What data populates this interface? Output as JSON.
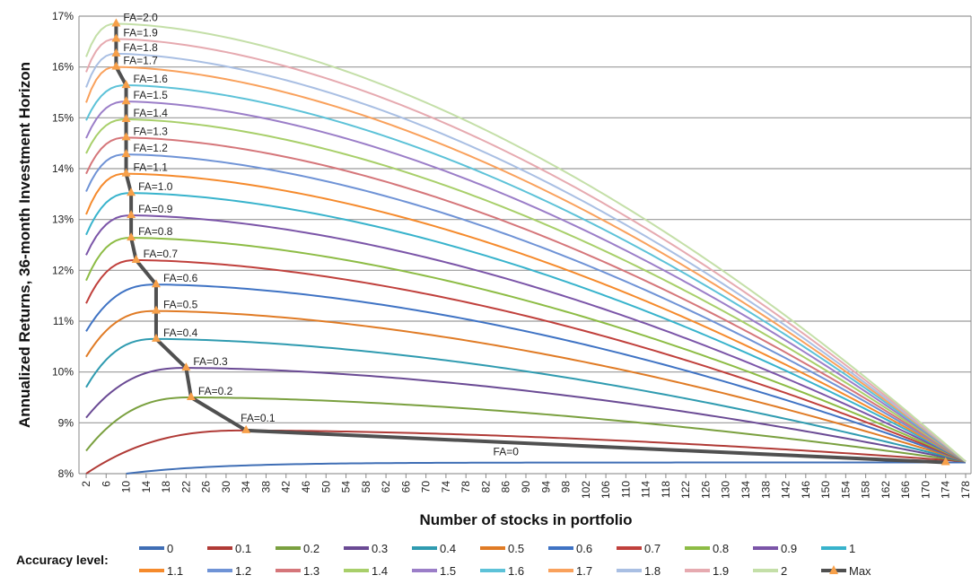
{
  "chart_data": {
    "type": "line",
    "title": "",
    "xlabel": "Number of stocks in portfolio",
    "ylabel": "Annualized Returns, 36-month Investment Horizon",
    "xlim": [
      2,
      178
    ],
    "ylim": [
      8,
      17
    ],
    "x_ticks": [
      2,
      6,
      10,
      14,
      18,
      22,
      26,
      30,
      34,
      38,
      42,
      46,
      50,
      54,
      58,
      62,
      66,
      70,
      74,
      78,
      82,
      86,
      90,
      94,
      98,
      102,
      106,
      110,
      114,
      118,
      122,
      126,
      130,
      134,
      138,
      142,
      146,
      150,
      154,
      158,
      162,
      166,
      170,
      174,
      178
    ],
    "y_ticks": [
      "8%",
      "9%",
      "10%",
      "11%",
      "12%",
      "13%",
      "14%",
      "15%",
      "16%",
      "17%"
    ],
    "grid": "horizontal",
    "legend_title": "Accuracy level:",
    "legend_position": "bottom",
    "series": [
      {
        "name": "0",
        "color": "#3f6eb5",
        "start_n": 10,
        "start": 8.0,
        "peak_n": 174,
        "peak": 8.22,
        "end": 8.22,
        "label": "FA=0"
      },
      {
        "name": "0.1",
        "color": "#b03a36",
        "start_n": 2,
        "start": 8.0,
        "peak_n": 34,
        "peak": 8.85,
        "end": 8.24,
        "label": "FA=0.1"
      },
      {
        "name": "0.2",
        "color": "#7aa03f",
        "start_n": 2,
        "start": 8.45,
        "peak_n": 23,
        "peak": 9.5,
        "end": 8.24,
        "label": "FA=0.2"
      },
      {
        "name": "0.3",
        "color": "#6a4a94",
        "start_n": 2,
        "start": 9.1,
        "peak_n": 22,
        "peak": 10.08,
        "end": 8.24,
        "label": "FA=0.3"
      },
      {
        "name": "0.4",
        "color": "#2f9bb0",
        "start_n": 2,
        "start": 9.7,
        "peak_n": 16,
        "peak": 10.65,
        "end": 8.24,
        "label": "FA=0.4"
      },
      {
        "name": "0.5",
        "color": "#e07b25",
        "start_n": 2,
        "start": 10.3,
        "peak_n": 16,
        "peak": 11.2,
        "end": 8.24,
        "label": "FA=0.5"
      },
      {
        "name": "0.6",
        "color": "#3f73c4",
        "start_n": 2,
        "start": 10.8,
        "peak_n": 16,
        "peak": 11.72,
        "end": 8.24,
        "label": "FA=0.6"
      },
      {
        "name": "0.7",
        "color": "#c0403c",
        "start_n": 2,
        "start": 11.35,
        "peak_n": 12,
        "peak": 12.2,
        "end": 8.24,
        "label": "FA=0.7"
      },
      {
        "name": "0.8",
        "color": "#8dbc45",
        "start_n": 2,
        "start": 11.8,
        "peak_n": 11,
        "peak": 12.64,
        "end": 8.24,
        "label": "FA=0.8"
      },
      {
        "name": "0.9",
        "color": "#7b55a8",
        "start_n": 2,
        "start": 12.3,
        "peak_n": 11,
        "peak": 13.08,
        "end": 8.24,
        "label": "FA=0.9"
      },
      {
        "name": "1",
        "color": "#38b3cc",
        "start_n": 2,
        "start": 12.7,
        "peak_n": 11,
        "peak": 13.52,
        "end": 8.24,
        "label": "FA=1.0"
      },
      {
        "name": "1.1",
        "color": "#f58a2c",
        "start_n": 2,
        "start": 13.1,
        "peak_n": 10,
        "peak": 13.9,
        "end": 8.24,
        "label": "FA=1.1"
      },
      {
        "name": "1.2",
        "color": "#6f93d6",
        "start_n": 2,
        "start": 13.55,
        "peak_n": 10,
        "peak": 14.28,
        "end": 8.24,
        "label": "FA=1.2"
      },
      {
        "name": "1.3",
        "color": "#d5767a",
        "start_n": 2,
        "start": 13.9,
        "peak_n": 10,
        "peak": 14.61,
        "end": 8.24,
        "label": "FA=1.3"
      },
      {
        "name": "1.4",
        "color": "#a8cf6a",
        "start_n": 2,
        "start": 14.3,
        "peak_n": 10,
        "peak": 14.97,
        "end": 8.24,
        "label": "FA=1.4"
      },
      {
        "name": "1.5",
        "color": "#9b7ec8",
        "start_n": 2,
        "start": 14.6,
        "peak_n": 10,
        "peak": 15.32,
        "end": 8.24,
        "label": "FA=1.5"
      },
      {
        "name": "1.6",
        "color": "#5dc2d8",
        "start_n": 2,
        "start": 14.95,
        "peak_n": 10,
        "peak": 15.64,
        "end": 8.24,
        "label": "FA=1.6"
      },
      {
        "name": "1.7",
        "color": "#f9a15c",
        "start_n": 2,
        "start": 15.3,
        "peak_n": 8,
        "peak": 16.0,
        "end": 8.24,
        "label": "FA=1.7"
      },
      {
        "name": "1.8",
        "color": "#a9bfe3",
        "start_n": 2,
        "start": 15.6,
        "peak_n": 8,
        "peak": 16.26,
        "end": 8.24,
        "label": "FA=1.8"
      },
      {
        "name": "1.9",
        "color": "#e6aab0",
        "start_n": 2,
        "start": 15.9,
        "peak_n": 8,
        "peak": 16.55,
        "end": 8.24,
        "label": "FA=1.9"
      },
      {
        "name": "2",
        "color": "#c4dfa8",
        "start_n": 2,
        "start": 16.2,
        "peak_n": 8,
        "peak": 16.85,
        "end": 8.24,
        "label": "FA=2.0"
      }
    ],
    "max_series": {
      "name": "Max",
      "color": "#505050",
      "marker_color": "#f7a04a"
    }
  }
}
